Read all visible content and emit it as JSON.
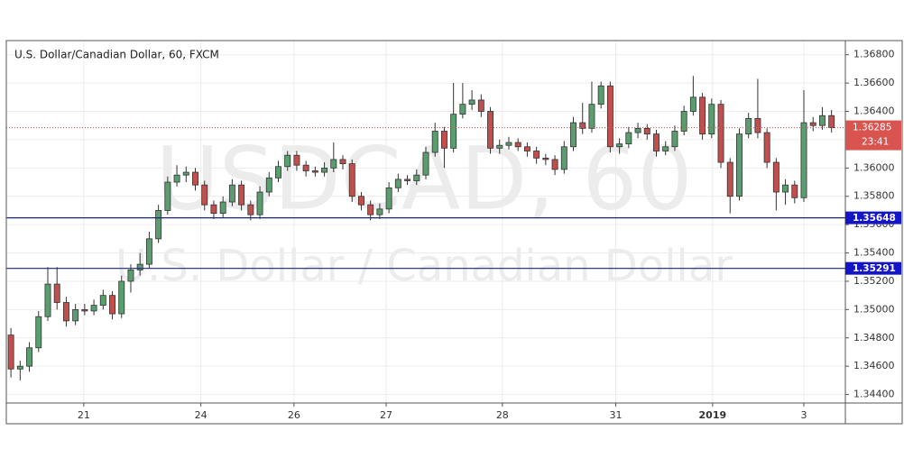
{
  "chart_data": {
    "type": "candlestick",
    "title": "U.S. Dollar/Canadian Dollar, 60, FXCM",
    "watermark": "USDCAD, 60",
    "watermark_sub": "U.S. Dollar / Canadian Dollar",
    "up_color": "#5a9e6f",
    "down_color": "#c0504d",
    "grid": true,
    "xlim": [
      -0.5,
      90.5
    ],
    "xticks": [
      {
        "value": 7.9,
        "label": "21"
      },
      {
        "value": 20.6,
        "label": "24"
      },
      {
        "value": 30.7,
        "label": "26"
      },
      {
        "value": 40.7,
        "label": "27"
      },
      {
        "value": 53.3,
        "label": "28"
      },
      {
        "value": 65.6,
        "label": "31"
      },
      {
        "value": 76.1,
        "label": "2019"
      },
      {
        "value": 86.0,
        "label": "3"
      }
    ],
    "ylim": [
      1.3434,
      1.369
    ],
    "yticks": [
      {
        "value": 1.344,
        "label": "1.34400"
      },
      {
        "value": 1.346,
        "label": "1.34600"
      },
      {
        "value": 1.348,
        "label": "1.34800"
      },
      {
        "value": 1.35,
        "label": "1.35000"
      },
      {
        "value": 1.352,
        "label": "1.35200"
      },
      {
        "value": 1.354,
        "label": "1.35400"
      },
      {
        "value": 1.356,
        "label": "1.35600"
      },
      {
        "value": 1.358,
        "label": "1.35800"
      },
      {
        "value": 1.36,
        "label": "1.36000"
      },
      {
        "value": 1.362,
        "label": "1.36200"
      },
      {
        "value": 1.364,
        "label": "1.36400"
      },
      {
        "value": 1.366,
        "label": "1.36600"
      },
      {
        "value": 1.368,
        "label": "1.36800"
      }
    ],
    "hlines": [
      {
        "value": 1.35648,
        "label": "1.35648",
        "color": "#1a237e",
        "box": "#1515c8"
      },
      {
        "value": 1.35291,
        "label": "1.35291",
        "color": "#1a237e",
        "box": "#1515c8"
      }
    ],
    "last_price": {
      "value": 1.36285,
      "label": "1.36285",
      "color": "#d9534f"
    },
    "countdown": "23:41",
    "open": [
      1.3482,
      1.3458,
      1.346,
      1.3473,
      1.3495,
      1.3518,
      1.3505,
      1.3492,
      1.35,
      1.3499,
      1.3503,
      1.351,
      1.3497,
      1.352,
      1.3528,
      1.3532,
      1.355,
      1.357,
      1.359,
      1.3595,
      1.3597,
      1.3588,
      1.3574,
      1.3568,
      1.3576,
      1.3588,
      1.3574,
      1.3567,
      1.3583,
      1.3593,
      1.3601,
      1.3609,
      1.3602,
      1.3598,
      1.3597,
      1.36,
      1.3606,
      1.3603,
      1.358,
      1.3574,
      1.3567,
      1.3571,
      1.3586,
      1.3592,
      1.3591,
      1.3595,
      1.3611,
      1.3626,
      1.3614,
      1.3638,
      1.3645,
      1.3648,
      1.364,
      1.3614,
      1.3616,
      1.3618,
      1.3615,
      1.3612,
      1.3607,
      1.3606,
      1.3599,
      1.3615,
      1.3632,
      1.3628,
      1.3645,
      1.3658,
      1.3615,
      1.3617,
      1.3625,
      1.3628,
      1.3624,
      1.3612,
      1.3615,
      1.3626,
      1.364,
      1.365,
      1.3624,
      1.3645,
      1.3604,
      1.358,
      1.3624,
      1.3635,
      1.3625,
      1.3604,
      1.3583,
      1.3588,
      1.3579,
      1.3632,
      1.363,
      1.3637
    ],
    "high": [
      1.3487,
      1.3464,
      1.3477,
      1.3499,
      1.353,
      1.353,
      1.3509,
      1.3504,
      1.3504,
      1.3507,
      1.3514,
      1.3513,
      1.3524,
      1.3532,
      1.354,
      1.3555,
      1.3574,
      1.3594,
      1.3602,
      1.3601,
      1.36,
      1.3591,
      1.3577,
      1.358,
      1.3592,
      1.3591,
      1.3577,
      1.3587,
      1.3597,
      1.3605,
      1.3612,
      1.3612,
      1.3605,
      1.3601,
      1.3604,
      1.3618,
      1.3609,
      1.3606,
      1.3583,
      1.3577,
      1.3575,
      1.359,
      1.3596,
      1.3595,
      1.3599,
      1.3615,
      1.3632,
      1.3629,
      1.366,
      1.366,
      1.3655,
      1.3652,
      1.3643,
      1.362,
      1.3622,
      1.3621,
      1.3618,
      1.3615,
      1.361,
      1.3609,
      1.3619,
      1.3636,
      1.3646,
      1.3661,
      1.3661,
      1.3661,
      1.3621,
      1.3629,
      1.3632,
      1.3631,
      1.3627,
      1.3619,
      1.363,
      1.3644,
      1.3665,
      1.3653,
      1.3649,
      1.3648,
      1.3607,
      1.3628,
      1.3639,
      1.3663,
      1.3628,
      1.3607,
      1.3592,
      1.3591,
      1.3655,
      1.3636,
      1.3643,
      1.3641
    ],
    "low": [
      1.3452,
      1.345,
      1.3456,
      1.347,
      1.3492,
      1.35,
      1.3488,
      1.3489,
      1.3496,
      1.3496,
      1.35,
      1.3493,
      1.3494,
      1.3512,
      1.3524,
      1.3529,
      1.3547,
      1.3567,
      1.3587,
      1.359,
      1.3584,
      1.357,
      1.3564,
      1.3565,
      1.3573,
      1.357,
      1.3563,
      1.3564,
      1.358,
      1.359,
      1.3598,
      1.3598,
      1.3594,
      1.3594,
      1.3594,
      1.3597,
      1.3599,
      1.3576,
      1.357,
      1.3563,
      1.3564,
      1.3568,
      1.3583,
      1.3588,
      1.3588,
      1.3592,
      1.3608,
      1.36,
      1.3611,
      1.3635,
      1.3641,
      1.3636,
      1.361,
      1.361,
      1.3613,
      1.3612,
      1.3608,
      1.3603,
      1.3602,
      1.3595,
      1.3596,
      1.3612,
      1.3624,
      1.3625,
      1.3642,
      1.3611,
      1.361,
      1.3614,
      1.3621,
      1.362,
      1.3608,
      1.3609,
      1.3612,
      1.3623,
      1.3637,
      1.362,
      1.3621,
      1.36,
      1.3568,
      1.3577,
      1.3621,
      1.3621,
      1.36,
      1.357,
      1.3574,
      1.3575,
      1.3576,
      1.3626,
      1.3627,
      1.3625
    ],
    "close": [
      1.3458,
      1.346,
      1.3473,
      1.3495,
      1.3518,
      1.3505,
      1.3492,
      1.35,
      1.3499,
      1.3503,
      1.351,
      1.3497,
      1.352,
      1.3528,
      1.3532,
      1.355,
      1.357,
      1.359,
      1.3595,
      1.3597,
      1.3588,
      1.3574,
      1.3568,
      1.3576,
      1.3588,
      1.3574,
      1.3567,
      1.3583,
      1.3593,
      1.3601,
      1.3609,
      1.3602,
      1.3598,
      1.3597,
      1.36,
      1.3606,
      1.3603,
      1.358,
      1.3574,
      1.3567,
      1.3571,
      1.3586,
      1.3592,
      1.3591,
      1.3595,
      1.3611,
      1.3626,
      1.3614,
      1.3638,
      1.3645,
      1.3648,
      1.364,
      1.3614,
      1.3616,
      1.3618,
      1.3615,
      1.3612,
      1.3607,
      1.3606,
      1.3599,
      1.3615,
      1.3632,
      1.3628,
      1.3645,
      1.3658,
      1.3615,
      1.3617,
      1.3625,
      1.3628,
      1.3624,
      1.3612,
      1.3615,
      1.3626,
      1.364,
      1.365,
      1.3624,
      1.3645,
      1.3604,
      1.358,
      1.3624,
      1.3635,
      1.3625,
      1.3604,
      1.3583,
      1.3588,
      1.3579,
      1.3632,
      1.363,
      1.3637,
      1.36285
    ]
  }
}
